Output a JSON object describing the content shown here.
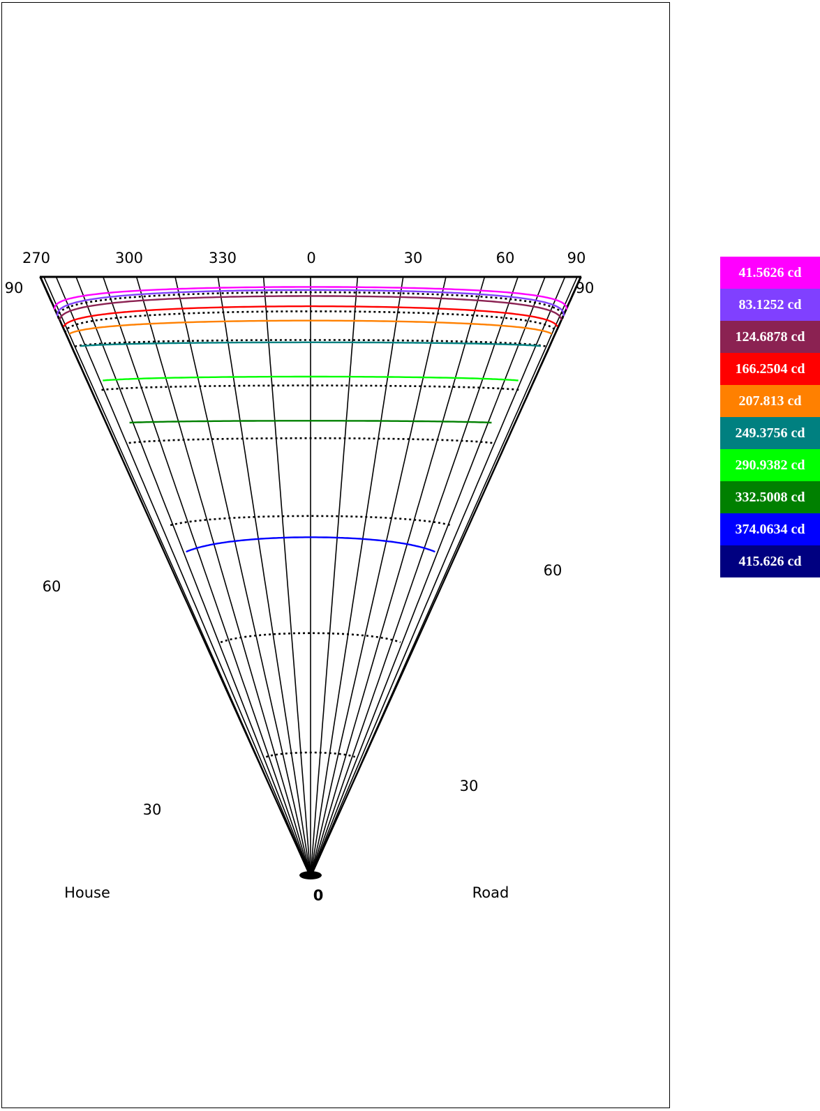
{
  "chart_data": {
    "type": "line",
    "description_mode": "isocandela diagram",
    "x_ticks": [
      "270",
      "300",
      "330",
      "0",
      "30",
      "60",
      "90"
    ],
    "corner_labels": {
      "top_left": "90",
      "top_right": "90"
    },
    "gamma_labels": {
      "left_60": "60",
      "right_60": "60",
      "left_30": "30",
      "right_30": "30",
      "bottom": "0"
    },
    "side_labels": {
      "left": "House",
      "right": "Road"
    },
    "grid": true,
    "legend_position": "right",
    "levels": [
      {
        "label": "41.5626 cd",
        "value": 41.5626,
        "color": "#ff00ff",
        "gamma_center": 79.5,
        "gamma_edge": 71.8,
        "edge_c": 88
      },
      {
        "label": "83.1252 cd",
        "value": 83.1252,
        "color": "#8040ff",
        "gamma_center": 78.0,
        "gamma_edge": 70.0,
        "edge_c": 88
      },
      {
        "label": "124.6878 cd",
        "value": 124.6878,
        "color": "#8b2252",
        "gamma_center": 75.5,
        "gamma_edge": 68.5,
        "edge_c": 86
      },
      {
        "label": "166.2504 cd",
        "value": 166.2504,
        "color": "#ff0000",
        "gamma_center": 72.0,
        "gamma_edge": 66.5,
        "edge_c": 84
      },
      {
        "label": "207.813 cd",
        "value": 207.813,
        "color": "#ff8000",
        "gamma_center": 68.0,
        "gamma_edge": 64.5,
        "edge_c": 80
      },
      {
        "label": "249.3756 cd",
        "value": 249.3756,
        "color": "#008080",
        "gamma_center": 63.0,
        "gamma_edge": 62.0,
        "edge_c": 74
      },
      {
        "label": "290.9382 cd",
        "value": 290.9382,
        "color": "#00ff00",
        "gamma_center": 56.5,
        "gamma_edge": 55.5,
        "edge_c": 68
      },
      {
        "label": "332.5008 cd",
        "value": 332.5008,
        "color": "#008000",
        "gamma_center": 49.5,
        "gamma_edge": 49.0,
        "edge_c": 62
      },
      {
        "label": "374.0634 cd",
        "value": 374.0634,
        "color": "#0000ff",
        "gamma_center": 34.5,
        "gamma_edge": 31.0,
        "edge_c": 58
      },
      {
        "label": "415.626 cd",
        "value": 415.626,
        "color": "#000080",
        "gamma_center": null,
        "gamma_edge": null,
        "edge_c": null
      }
    ],
    "reference_contours": [
      {
        "gamma_center": 77.0,
        "gamma_edge": 69.5,
        "edge_c": 89
      },
      {
        "gamma_center": 70.5,
        "gamma_edge": 65.5,
        "edge_c": 87
      },
      {
        "gamma_center": 63.5,
        "gamma_edge": 62.0,
        "edge_c": 80
      },
      {
        "gamma_center": 55.0,
        "gamma_edge": 54.0,
        "edge_c": 72
      },
      {
        "gamma_center": 47.0,
        "gamma_edge": 46.0,
        "edge_c": 68
      },
      {
        "gamma_center": 37.0,
        "gamma_edge": 35.0,
        "edge_c": 62
      },
      {
        "gamma_center": 24.0,
        "gamma_edge": 22.0,
        "edge_c": 58
      },
      {
        "gamma_center": 12.0,
        "gamma_edge": 11.0,
        "edge_c": 55
      }
    ]
  }
}
